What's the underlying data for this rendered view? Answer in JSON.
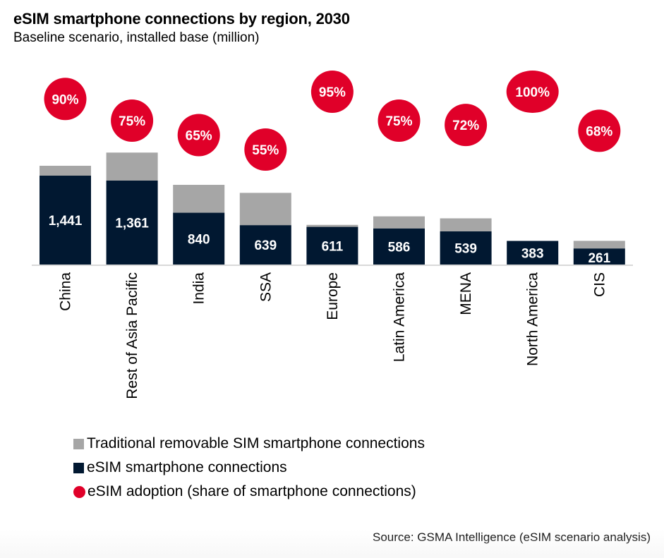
{
  "chart_data": {
    "type": "bar",
    "stacked": true,
    "title": "eSIM smartphone connections by region, 2030",
    "subtitle": "Baseline scenario, installed base (million)",
    "xlabel": "",
    "ylabel": "",
    "categories": [
      "China",
      "Rest of Asia Pacific",
      "India",
      "SSA",
      "Europe",
      "Latin America",
      "MENA",
      "North America",
      "CIS"
    ],
    "series": [
      {
        "name": "eSIM smartphone connections",
        "color": "#011831",
        "values": [
          1441,
          1361,
          840,
          639,
          611,
          586,
          539,
          383,
          261
        ],
        "labels": [
          "1,441",
          "1,361",
          "840",
          "639",
          "611",
          "586",
          "539",
          "383",
          "261"
        ]
      },
      {
        "name": "Traditional removable SIM smartphone connections",
        "color": "#a6a6a6",
        "values": [
          160,
          454,
          452,
          523,
          32,
          195,
          210,
          0,
          123
        ]
      }
    ],
    "adoption": {
      "name": "eSIM adoption (share of smartphone connections)",
      "color": "#e00029",
      "values": [
        90,
        75,
        65,
        55,
        95,
        75,
        72,
        100,
        68
      ],
      "labels": [
        "90%",
        "75%",
        "65%",
        "55%",
        "95%",
        "75%",
        "72%",
        "100%",
        "68%"
      ]
    },
    "ylim": [
      0,
      2000
    ],
    "grid": false,
    "legend_position": "bottom-left",
    "source": "Source: GSMA Intelligence (eSIM scenario analysis)"
  },
  "legend": [
    {
      "label": "Traditional removable SIM smartphone connections",
      "color": "#a6a6a6",
      "shape": "square"
    },
    {
      "label": "eSIM smartphone connections",
      "color": "#011831",
      "shape": "square"
    },
    {
      "label": "eSIM adoption (share of smartphone connections)",
      "color": "#e00029",
      "shape": "circle"
    }
  ],
  "colors": {
    "axis": "#d9d9d9",
    "bar_label": "#ffffff",
    "bubble_label": "#ffffff"
  }
}
